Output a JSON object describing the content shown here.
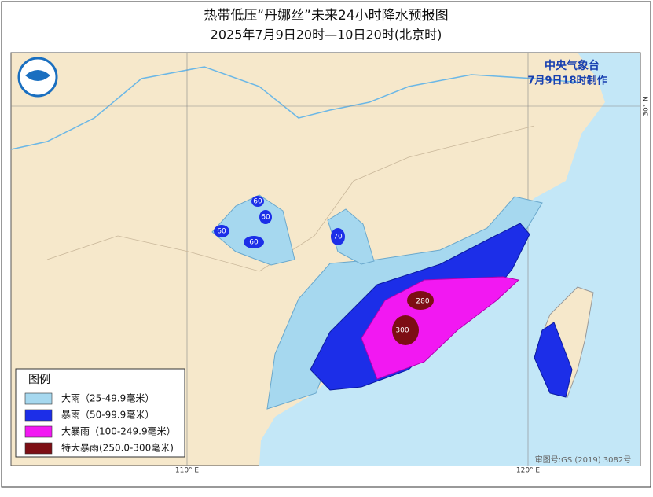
{
  "header": {
    "title": "热带低压“丹娜丝”未来24小时降水预报图",
    "subtitle": "2025年7月9日20时—10日20时(北京时)"
  },
  "agency": {
    "name": "中央气象台",
    "issued": "7月9日18时制作"
  },
  "map": {
    "lat_label": "30° N",
    "lon_labels": [
      "110° E",
      "120° E"
    ],
    "labels": [
      "60",
      "60",
      "60",
      "60",
      "70",
      "280",
      "300"
    ],
    "approval": "审图号:GS (2019) 3082号"
  },
  "legend": {
    "title": "图例",
    "items": [
      "大雨（25-49.9毫米）",
      "暴雨（50-99.9毫米）",
      "大暴雨（100-249.9毫米）",
      "特大暴雨(250.0-300毫米)"
    ]
  }
}
